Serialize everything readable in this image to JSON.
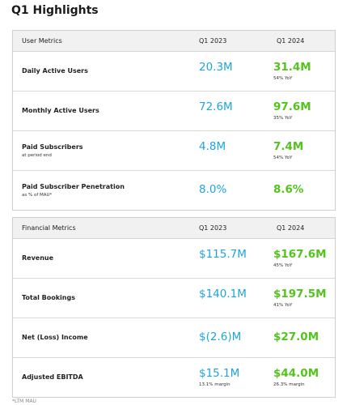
{
  "title": "Q1 Highlights",
  "tables": [
    {
      "header": [
        "User Metrics",
        "Q1 2023",
        "Q1 2024"
      ],
      "rows": [
        {
          "label": "Daily Active Users",
          "q1_2023": "20.3M",
          "q1_2024": "31.4M",
          "q1_2024_note": "54% YoY"
        },
        {
          "label": "Monthly Active Users",
          "q1_2023": "72.6M",
          "q1_2024": "97.6M",
          "q1_2024_note": "35% YoY"
        },
        {
          "label": "Paid Subscribers",
          "sublabel": "at period end",
          "q1_2023": "4.8M",
          "q1_2024": "7.4M",
          "q1_2024_note": "54% YoY"
        },
        {
          "label": "Paid Subscriber Penetration",
          "sublabel": "as % of MAU*",
          "q1_2023": "8.0%",
          "q1_2024": "8.6%"
        }
      ]
    },
    {
      "header": [
        "Financial Metrics",
        "Q1 2023",
        "Q1 2024"
      ],
      "rows": [
        {
          "label": "Revenue",
          "q1_2023": "$115.7M",
          "q1_2024": "$167.6M",
          "q1_2024_note": "45% YoY"
        },
        {
          "label": "Total Bookings",
          "q1_2023": "$140.1M",
          "q1_2024": "$197.5M",
          "q1_2024_note": "41% YoY"
        },
        {
          "label": "Net (Loss) Income",
          "q1_2023": "$(2.6)M",
          "q1_2024": "$27.0M"
        },
        {
          "label": "Adjusted EBITDA",
          "q1_2023": "$15.1M",
          "q1_2024": "$44.0M",
          "q1_2023_note": "13.1% margin",
          "q1_2024_note": "26.3% margin"
        }
      ]
    }
  ],
  "footnote": "*LTM MAU"
}
